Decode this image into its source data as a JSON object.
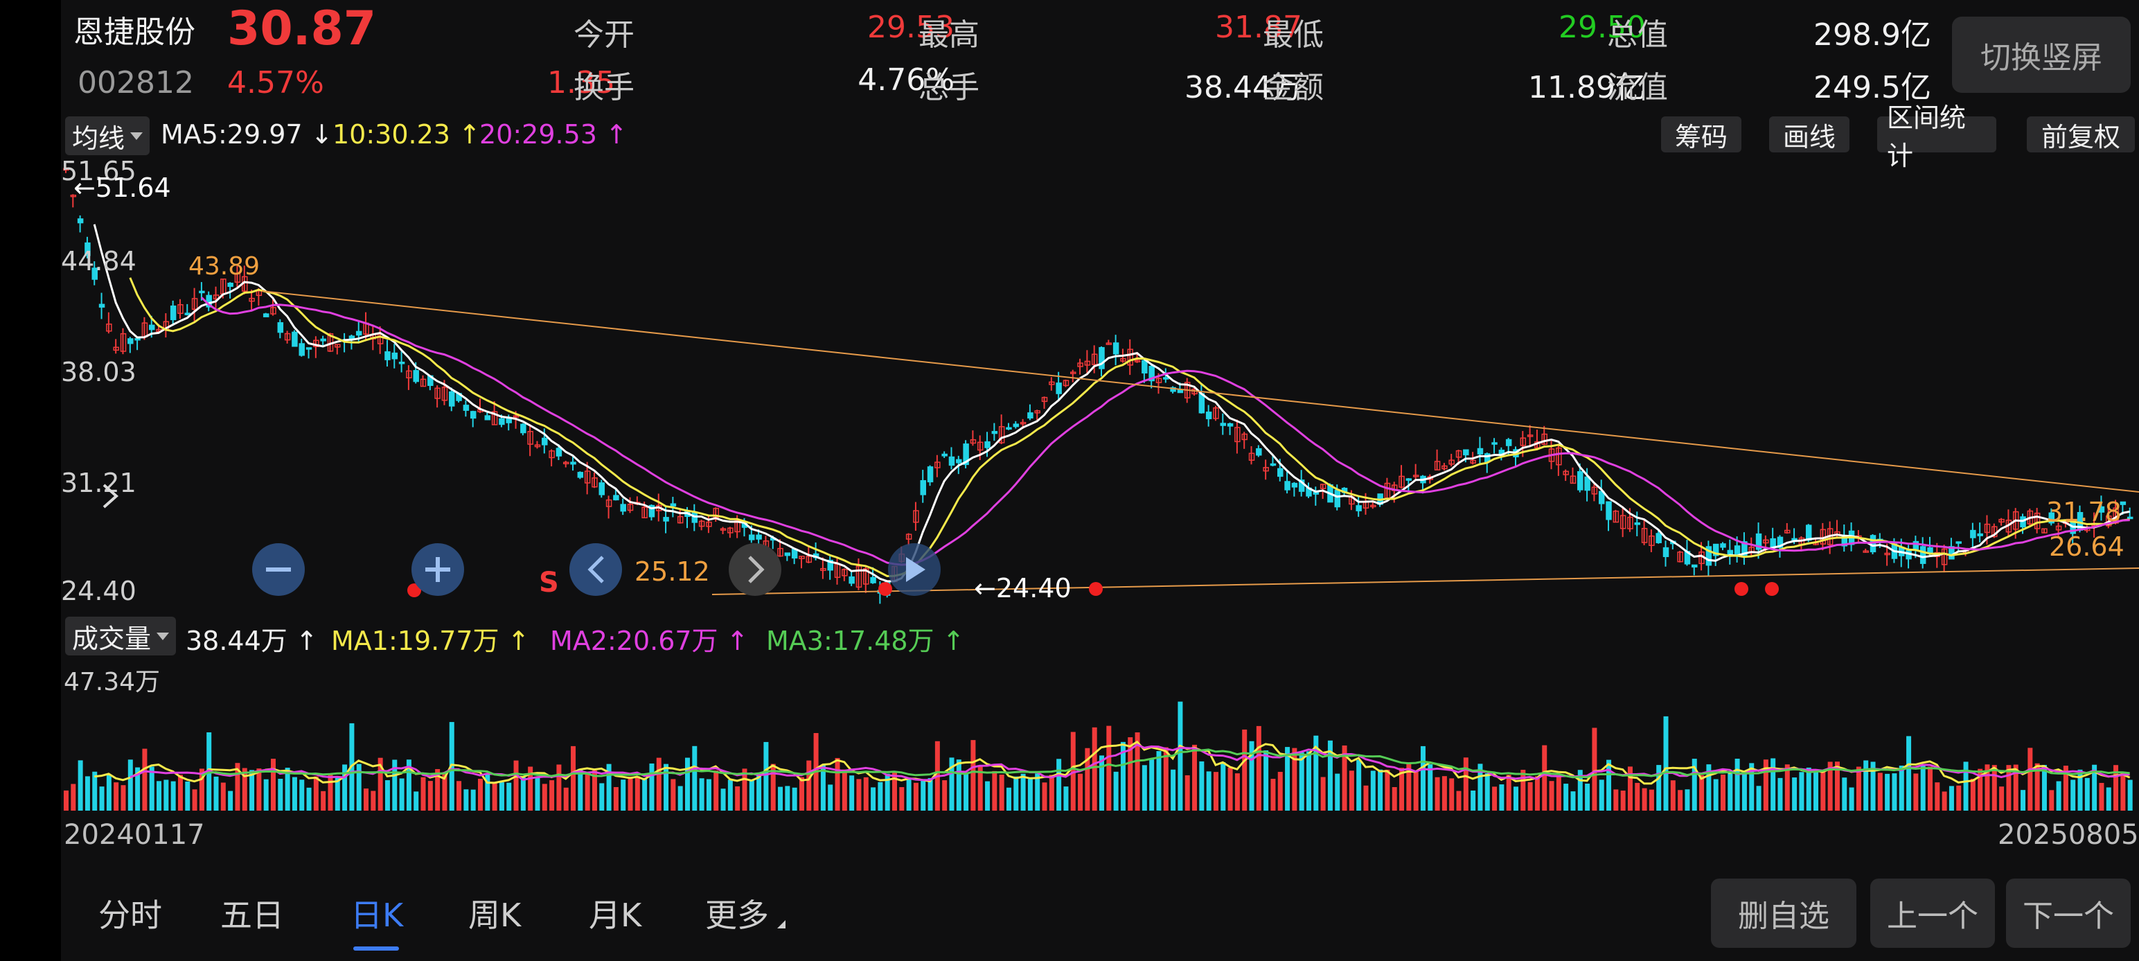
{
  "stock": {
    "name": "恩捷股份",
    "price": "30.87",
    "code": "002812",
    "change_pct": "4.57%",
    "change": "1.35"
  },
  "quote": [
    {
      "label": "今开",
      "value": "29.53",
      "color": "red"
    },
    {
      "label": "最高",
      "value": "31.87",
      "color": "red"
    },
    {
      "label": "最低",
      "value": "29.50",
      "color": "green"
    },
    {
      "label": "总值",
      "value": "298.9亿",
      "color": "white"
    },
    {
      "label": "换手",
      "value": "4.76%",
      "color": "white"
    },
    {
      "label": "总手",
      "value": "38.44万",
      "color": "white"
    },
    {
      "label": "金额",
      "value": "11.89亿",
      "color": "white"
    },
    {
      "label": "流值",
      "value": "249.5亿",
      "color": "white"
    }
  ],
  "switch_button": "切换竖屏",
  "main_indicator": {
    "selector": "均线",
    "ma5": "MA5:29.97 ↓",
    "ma10": "10:30.23 ↑",
    "ma20": "20:29.53 ↑"
  },
  "tools": [
    "筹码",
    "画线",
    "区间统计",
    "前复权"
  ],
  "price_axis": [
    "51.65",
    "44.84",
    "38.03",
    "31.21",
    "24.40"
  ],
  "chart_labels": {
    "high_mark": "←51.64",
    "mid_high": "43.89",
    "low_mark": "←24.40",
    "left_price": "25.12",
    "right_top": "31.78",
    "right_bottom": "26.64",
    "sell_marker": "S"
  },
  "volume_indicator": {
    "selector": "成交量",
    "vol": "38.44万 ↑",
    "ma1": "MA1:19.77万 ↑",
    "ma2": "MA2:20.67万 ↑",
    "ma3": "MA3:17.48万 ↑",
    "max_label": "47.34万"
  },
  "dates": {
    "start": "20240117",
    "end": "20250805"
  },
  "tabs": [
    "分时",
    "五日",
    "日K",
    "周K",
    "月K",
    "更多"
  ],
  "active_tab": "日K",
  "bottom_buttons": [
    "删自选",
    "上一个",
    "下一个"
  ],
  "colors": {
    "up": "#f03a3a",
    "down": "#22d3e6",
    "ma5": "#ffffff",
    "ma10": "#f5e94b",
    "ma20": "#e040e0",
    "ma3": "#55cc55",
    "accent": "#3d7cf5",
    "trendline": "#e59a4a"
  }
}
